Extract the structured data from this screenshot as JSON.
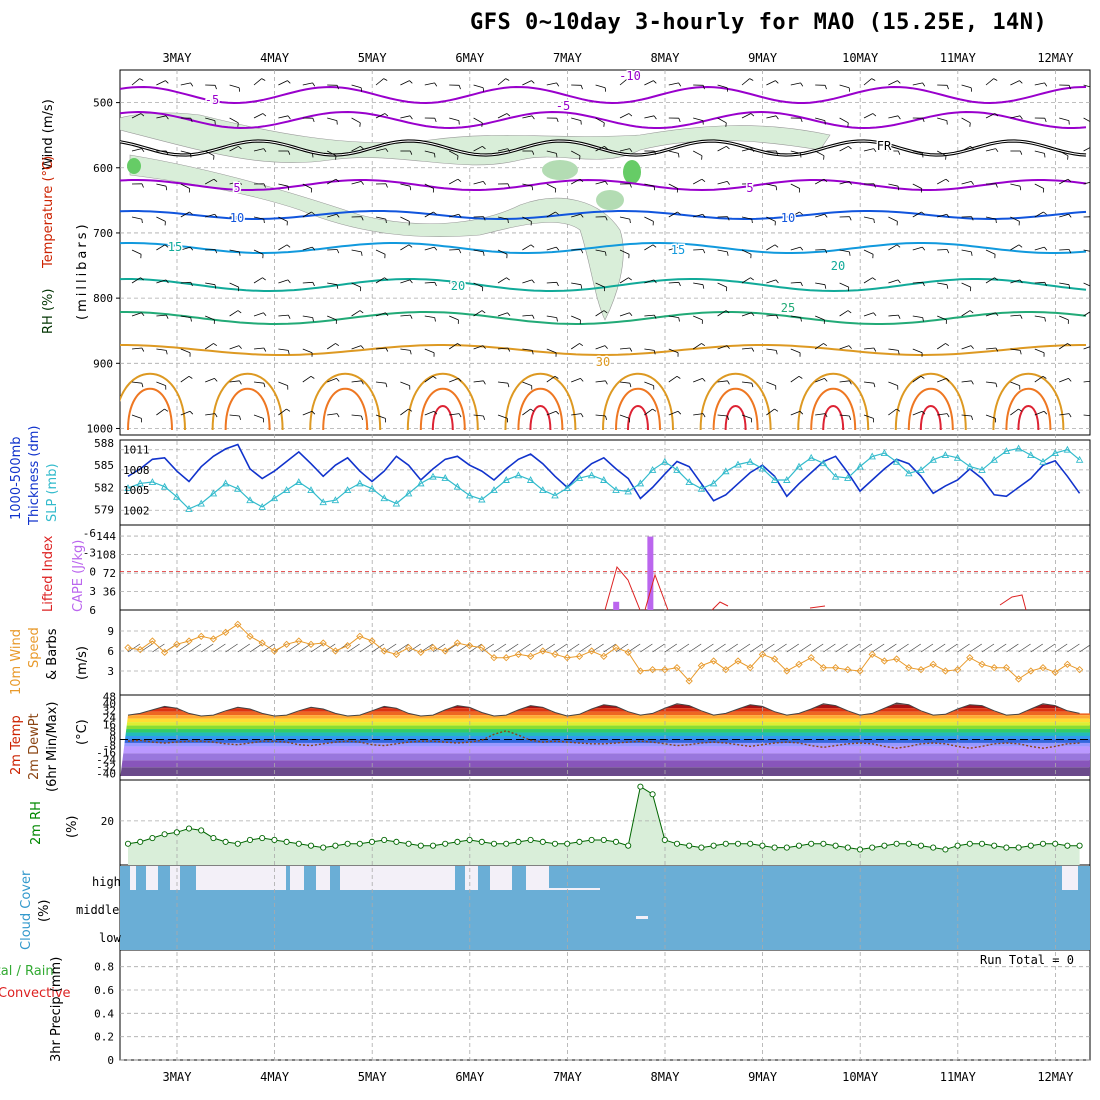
{
  "title": "GFS 0~10day 3-hourly for MAO (15.25E, 14N)",
  "dates": [
    "3MAY",
    "4MAY",
    "5MAY",
    "6MAY",
    "7MAY",
    "8MAY",
    "9MAY",
    "10MAY",
    "11MAY",
    "12MAY"
  ],
  "run_total": "Run Total = 0",
  "colors": {
    "rh": "#008800",
    "temp_label": "#cc2200",
    "wind_label": "#000000",
    "cape": "#bb66ee",
    "li": "#dd2222",
    "sfc_wind": "#e89a2c",
    "slp": "#33bbcc",
    "thick": "#1133cc",
    "cloud": "#6aaed6",
    "rh2m": "#006600"
  },
  "panels": {
    "upper": {
      "labels": [
        "Wind (m/s)",
        "Temperature (°C)",
        "RH (%)",
        "(millibars)"
      ],
      "pressure_ticks": [
        "500",
        "600",
        "700",
        "800",
        "900",
        "1000"
      ],
      "isotherm_labels": [
        "-10",
        "-5",
        "-5",
        "5",
        "5",
        "10",
        "10",
        "15",
        "15",
        "20",
        "20",
        "25",
        "30",
        "FR"
      ]
    },
    "thick_slp": {
      "labels": [
        "1000-500mb",
        "Thickness (dm)",
        "SLP (mb)"
      ],
      "left_ticks": [
        "588",
        "585",
        "582",
        "579"
      ],
      "right_ticks": [
        "1011",
        "1008",
        "1005",
        "1002"
      ]
    },
    "cape_li": {
      "labels": [
        "Lifted Index",
        "CAPE (J/kg)"
      ],
      "left_ticks": [
        "-6",
        "-3",
        "0",
        "3",
        "6"
      ],
      "right_ticks": [
        "144",
        "108",
        "72",
        "36"
      ]
    },
    "wind10": {
      "labels": [
        "10m Wind",
        "Speed",
        "& Barbs",
        "(m/s)"
      ],
      "ticks": [
        "9",
        "6",
        "3"
      ]
    },
    "temp2m": {
      "labels": [
        "2m Temp",
        "2m DewPt",
        "(6hr Min/Max)",
        "(°C)"
      ],
      "ticks": [
        "48",
        "40",
        "32",
        "24",
        "16",
        "8",
        "0",
        "-8",
        "-16",
        "-24",
        "-32",
        "-40"
      ]
    },
    "rh2m": {
      "labels": [
        "2m RH",
        "(%)"
      ],
      "ticks": [
        "20"
      ]
    },
    "cloud": {
      "labels": [
        "Cloud Cover",
        "(%)"
      ],
      "levels": [
        "high",
        "middle",
        "low"
      ]
    },
    "precip": {
      "labels": [
        "Total / Rain",
        "Convective",
        "3hr Precip (mm)"
      ],
      "ticks": [
        "0.8",
        "0.6",
        "0.4",
        "0.2",
        "0"
      ]
    }
  },
  "chart_data": [
    {
      "type": "line",
      "title": "1000-500mb Thickness (dm) / SLP (mb)",
      "series": [
        {
          "name": "Thickness (dm)",
          "values": [
            583.5,
            584.5,
            585.8,
            586.0,
            584.2,
            582.8,
            584.8,
            586.2,
            587.2,
            587.8,
            584.5,
            583.2,
            584.2,
            585.5,
            586.8,
            585.2,
            583.5,
            585.0,
            586.0,
            584.2,
            582.8,
            584.2,
            586.2,
            585.0,
            583.0,
            584.5,
            585.8,
            586.2,
            585.0,
            584.2,
            583.0,
            584.5,
            585.8,
            586.5,
            585.2,
            583.5,
            582.0,
            583.8,
            585.2,
            586.0,
            584.5,
            583.2,
            580.5,
            582.0,
            583.8,
            585.5,
            584.8,
            582.5,
            580.2,
            581.0,
            582.5,
            584.0,
            585.0,
            583.5,
            580.8,
            582.5,
            584.0,
            585.5,
            586.2,
            584.0,
            581.5,
            583.0,
            584.5,
            585.8,
            585.2,
            583.5,
            581.2,
            582.2,
            583.0,
            584.5,
            583.2,
            581.0,
            580.8,
            582.0,
            583.2,
            585.0,
            585.6,
            583.5,
            581.2
          ]
        },
        {
          "name": "SLP (mb)",
          "values": [
            1005.3,
            1006.0,
            1006.2,
            1005.5,
            1004.0,
            1002.2,
            1003.0,
            1004.5,
            1006.0,
            1005.2,
            1003.5,
            1002.5,
            1003.8,
            1005.0,
            1006.2,
            1005.0,
            1003.2,
            1003.5,
            1005.0,
            1006.0,
            1005.2,
            1003.8,
            1003.0,
            1004.5,
            1006.0,
            1007.0,
            1006.8,
            1005.5,
            1004.2,
            1003.6,
            1005.0,
            1006.5,
            1007.2,
            1006.5,
            1005.0,
            1004.2,
            1005.3,
            1006.8,
            1007.2,
            1006.5,
            1005.0,
            1004.8,
            1006.0,
            1008.0,
            1009.2,
            1008.0,
            1006.2,
            1005.2,
            1006.0,
            1007.8,
            1008.8,
            1009.2,
            1008.2,
            1006.5,
            1006.5,
            1008.5,
            1009.8,
            1009.0,
            1007.0,
            1006.8,
            1008.5,
            1010.0,
            1010.5,
            1009.2,
            1007.5,
            1008.0,
            1009.5,
            1010.2,
            1009.8,
            1008.5,
            1008.0,
            1009.5,
            1010.8,
            1011.2,
            1010.2,
            1009.2,
            1010.5,
            1011.0,
            1009.5
          ]
        }
      ]
    },
    {
      "type": "bar",
      "title": "CAPE (J/kg)",
      "bars": [
        {
          "date_index": 4.5,
          "value": 16
        },
        {
          "date_index": 4.85,
          "value": 143
        }
      ]
    },
    {
      "type": "line",
      "title": "10m Wind Speed (m/s)",
      "series": [
        {
          "name": "10m Wind Speed",
          "values": [
            6.5,
            6.2,
            7.5,
            5.8,
            7.0,
            7.5,
            8.2,
            7.8,
            8.8,
            10.0,
            8.2,
            7.2,
            6.0,
            7.0,
            7.5,
            7.0,
            7.2,
            6.0,
            6.8,
            8.2,
            7.5,
            6.0,
            5.5,
            6.5,
            5.8,
            6.5,
            6.0,
            7.2,
            6.8,
            6.5,
            5.0,
            5.0,
            5.5,
            5.2,
            6.0,
            5.5,
            5.0,
            5.2,
            6.0,
            5.2,
            6.5,
            5.8,
            3.0,
            3.2,
            3.2,
            3.5,
            1.5,
            3.8,
            4.5,
            3.2,
            4.5,
            3.5,
            5.5,
            4.8,
            3.0,
            4.0,
            5.0,
            3.5,
            3.5,
            3.2,
            3.0,
            5.5,
            4.5,
            4.8,
            3.5,
            3.2,
            4.0,
            3.0,
            3.2,
            5.0,
            4.0,
            3.5,
            3.5,
            1.8,
            3.0,
            3.5,
            2.8,
            4.0,
            3.2
          ]
        }
      ]
    },
    {
      "type": "line",
      "title": "2m Temp / DewPt (°C)",
      "series": [
        {
          "name": "2m Temp",
          "values": [
            28,
            30,
            34,
            38,
            36,
            30,
            27,
            28,
            33,
            37,
            35,
            30,
            27,
            28,
            33,
            37,
            35,
            30,
            27,
            28,
            33,
            38,
            36,
            30,
            27,
            28,
            34,
            39,
            37,
            31,
            27,
            28,
            34,
            39,
            37,
            31,
            27,
            29,
            35,
            40,
            38,
            32,
            28,
            30,
            36,
            41,
            39,
            33,
            28,
            30,
            35,
            40,
            38,
            32,
            28,
            30,
            35,
            41,
            39,
            33,
            28,
            30,
            36,
            42,
            40,
            33,
            28,
            29,
            35,
            40,
            39,
            33,
            28,
            29,
            35,
            41,
            39,
            33,
            30
          ]
        },
        {
          "name": "2m DewPt",
          "values": [
            -2,
            -1,
            -3,
            -4,
            -3,
            -2,
            -2,
            -3,
            -5,
            -6,
            -4,
            -2,
            -2,
            -3,
            -6,
            -7,
            -5,
            -3,
            -2,
            -3,
            -6,
            -7,
            -5,
            -3,
            -2,
            -2,
            -3,
            -4,
            -3,
            -1,
            6,
            10,
            5,
            -1,
            -3,
            -2,
            -3,
            -4,
            -5,
            -5,
            -4,
            -3,
            -2,
            -3,
            -5,
            -7,
            -6,
            -4,
            -3,
            -4,
            -6,
            -8,
            -6,
            -4,
            -3,
            -4,
            -7,
            -9,
            -7,
            -5,
            -4,
            -5,
            -8,
            -10,
            -8,
            -5,
            -4,
            -5,
            -8,
            -10,
            -8,
            -5,
            -4,
            -5,
            -8,
            -10,
            -8,
            -5,
            -4
          ]
        }
      ]
    },
    {
      "type": "line",
      "title": "2m RH (%)",
      "series": [
        {
          "name": "2m RH",
          "values": [
            8,
            9,
            11,
            13,
            14,
            16,
            15,
            11,
            9,
            8,
            10,
            11,
            10,
            9,
            8,
            7,
            6,
            7,
            8,
            8,
            9,
            10,
            9,
            8,
            7,
            7,
            8,
            9,
            10,
            9,
            8,
            8,
            9,
            10,
            9,
            8,
            8,
            9,
            10,
            10,
            9,
            7,
            38,
            34,
            10,
            8,
            7,
            6,
            7,
            8,
            8,
            8,
            7,
            6,
            6,
            7,
            8,
            8,
            7,
            6,
            5,
            6,
            7,
            8,
            8,
            7,
            6,
            5,
            7,
            8,
            8,
            7,
            6,
            6,
            7,
            8,
            8,
            7,
            7
          ]
        }
      ]
    }
  ]
}
